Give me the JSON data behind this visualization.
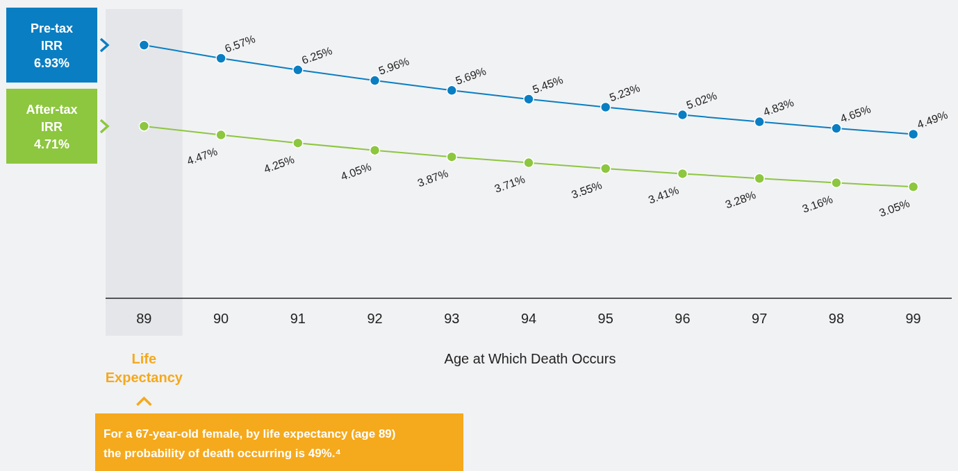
{
  "chart_data": {
    "type": "line",
    "xlabel": "Age at Which Death Occurs",
    "x": [
      89,
      90,
      91,
      92,
      93,
      94,
      95,
      96,
      97,
      98,
      99
    ],
    "xlim": [
      88.5,
      99.5
    ],
    "xticks": [
      89,
      90,
      91,
      92,
      93,
      94,
      95,
      96,
      97,
      98,
      99
    ],
    "marker": "circle",
    "legend": "left",
    "series": [
      {
        "name": "Pre-tax IRR 6.93%",
        "color": "#0a7ec2",
        "values": [
          6.93,
          6.57,
          6.25,
          5.96,
          5.69,
          5.45,
          5.23,
          5.02,
          4.83,
          4.65,
          4.49
        ],
        "value_labels": [
          null,
          "6.57%",
          "6.25%",
          "5.96%",
          "5.69%",
          "5.45%",
          "5.23%",
          "5.02%",
          "4.83%",
          "4.65%",
          "4.49%"
        ]
      },
      {
        "name": "After-tax IRR 4.71%",
        "color": "#8dc63f",
        "values": [
          4.71,
          4.47,
          4.25,
          4.05,
          3.87,
          3.71,
          3.55,
          3.41,
          3.28,
          3.16,
          3.05
        ],
        "value_labels": [
          null,
          "4.47%",
          "4.25%",
          "4.05%",
          "3.87%",
          "3.71%",
          "3.55%",
          "3.41%",
          "3.28%",
          "3.16%",
          "3.05%"
        ]
      }
    ],
    "bands": [
      {
        "axis": "x",
        "from": 88.5,
        "to": 89.5,
        "label": "Life Expectancy",
        "color": "#e4e6e9"
      }
    ],
    "annotations": [
      "For a 67-year-old female, by life expectancy (age 89) the probability of death occurring is 49%.⁴"
    ]
  }
}
